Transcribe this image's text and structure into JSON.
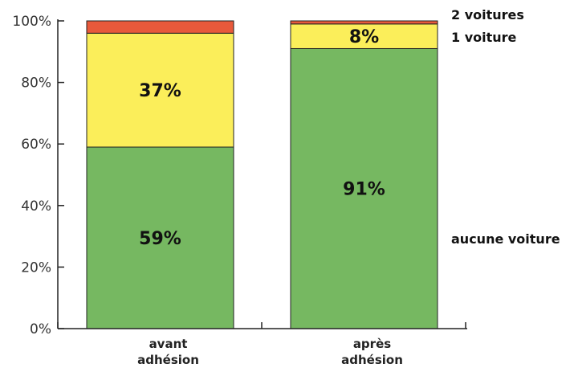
{
  "chart_data": {
    "type": "bar",
    "stacked": true,
    "categories": [
      [
        "avant",
        "adhésion"
      ],
      [
        "après",
        "adhésion"
      ]
    ],
    "series": [
      {
        "name": "aucune voiture",
        "color": "#76b861",
        "values": [
          59,
          91
        ],
        "labels": [
          "59%",
          "91%"
        ]
      },
      {
        "name": "1 voiture",
        "color": "#fbee5a",
        "values": [
          37,
          8
        ],
        "labels": [
          "37%",
          "8%"
        ]
      },
      {
        "name": "2 voitures",
        "color": "#e8593b",
        "values": [
          4,
          1
        ],
        "labels": [
          "",
          ""
        ]
      }
    ],
    "ylim": [
      0,
      100
    ],
    "yticks": [
      0,
      20,
      40,
      60,
      80,
      100
    ],
    "ytick_labels": [
      "0%",
      "20%",
      "40%",
      "60%",
      "80%",
      "100%"
    ],
    "grid": false,
    "legend_position": "right"
  }
}
